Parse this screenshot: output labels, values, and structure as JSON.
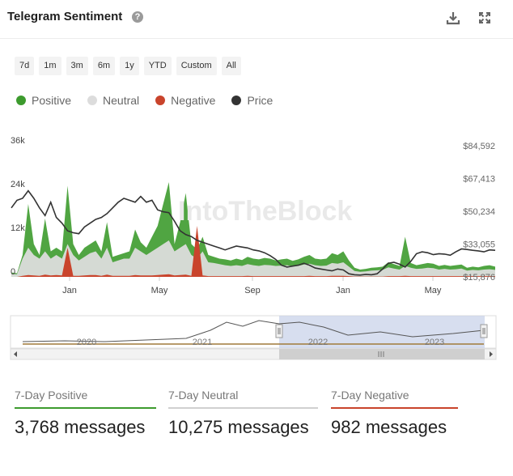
{
  "header": {
    "title": "Telegram Sentiment",
    "help_icon": "question-circle-icon",
    "download_icon": "download-icon",
    "fullscreen_icon": "expand-icon"
  },
  "ranges": [
    "7d",
    "1m",
    "3m",
    "6m",
    "1y",
    "YTD",
    "Custom",
    "All"
  ],
  "legend": [
    {
      "label": "Positive",
      "color": "#3d9b2e"
    },
    {
      "label": "Neutral",
      "color": "#dcdcdc"
    },
    {
      "label": "Negative",
      "color": "#c9442c"
    },
    {
      "label": "Price",
      "color": "#333333"
    }
  ],
  "watermark": "IntoTheBlock",
  "chart_data": {
    "type": "area",
    "x_ticks": [
      "Jan",
      "May",
      "Sep",
      "Jan",
      "May"
    ],
    "y_left_ticks": [
      "0",
      "12k",
      "24k",
      "36k"
    ],
    "y_left_range": [
      0,
      36000
    ],
    "y_right_ticks": [
      "$15,876",
      "$33,055",
      "$50,234",
      "$67,413",
      "$84,592"
    ],
    "y_right_range": [
      15876,
      84592
    ],
    "series": [
      {
        "name": "Positive",
        "color": "#3d9b2e",
        "values": [
          1200,
          1000,
          6000,
          20000,
          9000,
          6000,
          16000,
          7000,
          8000,
          7000,
          25000,
          9000,
          6000,
          8000,
          9000,
          10000,
          7000,
          15000,
          5500,
          6000,
          6500,
          7000,
          13000,
          9500,
          8000,
          11000,
          14000,
          20000,
          26000,
          9000,
          15000,
          23000,
          9000,
          7500,
          11000,
          6000,
          5500,
          5000,
          4800,
          4500,
          5000,
          4600,
          5500,
          5000,
          4800,
          5200,
          5000,
          4500,
          4800,
          5000,
          4400,
          4800,
          5500,
          6000,
          5000,
          4800,
          5000,
          6500,
          6000,
          7000,
          4500,
          2500,
          2000,
          2200,
          2500,
          2600,
          2800,
          4000,
          3500,
          3000,
          11000,
          3800,
          3200,
          3500,
          3800,
          3600,
          3000,
          3300,
          3000,
          3200,
          3400,
          2500,
          2800,
          2600,
          3000,
          3200,
          2800
        ]
      },
      {
        "name": "Neutral",
        "color": "#dcdcdc",
        "values": [
          800,
          700,
          5000,
          8000,
          6000,
          5000,
          7000,
          5000,
          6000,
          5000,
          9000,
          6000,
          4500,
          5500,
          6500,
          7000,
          5000,
          8000,
          4000,
          4500,
          5000,
          5000,
          8000,
          7000,
          6000,
          7000,
          8000,
          9000,
          10000,
          7000,
          8000,
          9000,
          6000,
          5000,
          7000,
          4000,
          3800,
          3500,
          3200,
          3000,
          3200,
          3000,
          3500,
          3200,
          3000,
          3300,
          3200,
          3000,
          3100,
          3200,
          2900,
          3000,
          3400,
          3600,
          3200,
          3000,
          3100,
          3800,
          3600,
          4000,
          2800,
          1600,
          1400,
          1500,
          1700,
          1800,
          1900,
          2600,
          2300,
          2000,
          3000,
          2500,
          2200,
          2300,
          2500,
          2400,
          2000,
          2200,
          2000,
          2100,
          2300,
          1700,
          1900,
          1800,
          2000,
          2100,
          1900
        ]
      },
      {
        "name": "Negative",
        "color": "#c9442c",
        "values": [
          0,
          0,
          300,
          500,
          400,
          300,
          600,
          400,
          500,
          400,
          8000,
          300,
          300,
          400,
          500,
          500,
          300,
          600,
          300,
          300,
          300,
          300,
          500,
          400,
          400,
          400,
          500,
          600,
          700,
          400,
          500,
          600,
          300,
          14000,
          400,
          200,
          200,
          200,
          200,
          200,
          200,
          200,
          300,
          200,
          200,
          200,
          200,
          200,
          200,
          200,
          200,
          200,
          200,
          300,
          200,
          200,
          200,
          300,
          300,
          300,
          200,
          100,
          100,
          100,
          100,
          100,
          100,
          200,
          200,
          200,
          300,
          200,
          200,
          200,
          200,
          200,
          200,
          200,
          200,
          200,
          200,
          200,
          200,
          200,
          200,
          200,
          200
        ]
      },
      {
        "name": "Price",
        "color": "#333333",
        "values": [
          52000,
          56000,
          57000,
          61000,
          57000,
          52000,
          48000,
          55000,
          47000,
          44000,
          40000,
          39000,
          38500,
          42000,
          44000,
          46000,
          47000,
          49000,
          52000,
          55000,
          57000,
          56000,
          55000,
          58000,
          55000,
          56000,
          51000,
          50000,
          49500,
          45000,
          40000,
          38000,
          37000,
          35000,
          34000,
          33000,
          32000,
          31000,
          30000,
          31000,
          32000,
          31500,
          31000,
          30000,
          29500,
          28500,
          27000,
          25000,
          22000,
          21000,
          21500,
          22000,
          23000,
          22000,
          20500,
          20000,
          19500,
          19000,
          20000,
          19500,
          17500,
          17000,
          16800,
          17200,
          17000,
          17500,
          20000,
          23000,
          23500,
          22500,
          21000,
          24000,
          28000,
          29000,
          28500,
          27500,
          28000,
          27800,
          27200,
          29000,
          30500,
          30200,
          29800,
          29500,
          29000,
          30000,
          29800
        ]
      }
    ],
    "navigator_labels": [
      "2020",
      "2021",
      "2022",
      "2023"
    ]
  },
  "stats": [
    {
      "label": "7-Day Positive",
      "value": "3,768 messages",
      "color": "#3d9b2e"
    },
    {
      "label": "7-Day Neutral",
      "value": "10,275 messages",
      "color": "#d0d0d0"
    },
    {
      "label": "7-Day Negative",
      "value": "982 messages",
      "color": "#c9442c"
    }
  ]
}
